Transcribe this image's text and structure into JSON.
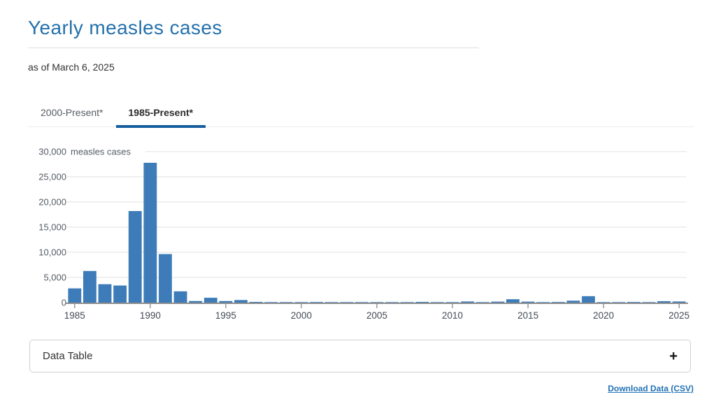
{
  "header": {
    "title": "Yearly measles cases",
    "as_of": "as of March 6, 2025"
  },
  "tabs": {
    "items": [
      {
        "label": "2000-Present*",
        "active": false
      },
      {
        "label": "1985-Present*",
        "active": true
      }
    ]
  },
  "chart_data": {
    "type": "bar",
    "title": "Yearly measles cases",
    "ylabel": "measles cases",
    "xlabel": "",
    "ylim": [
      0,
      30000
    ],
    "grid": true,
    "bar_color": "#3d7cb8",
    "yticks": [
      0,
      5000,
      10000,
      15000,
      20000,
      25000,
      30000
    ],
    "xticks": [
      1985,
      1990,
      1995,
      2000,
      2005,
      2010,
      2015,
      2020,
      2025
    ],
    "x": [
      1985,
      1986,
      1987,
      1988,
      1989,
      1990,
      1991,
      1992,
      1993,
      1994,
      1995,
      1996,
      1997,
      1998,
      1999,
      2000,
      2001,
      2002,
      2003,
      2004,
      2005,
      2006,
      2007,
      2008,
      2009,
      2010,
      2011,
      2012,
      2013,
      2014,
      2015,
      2016,
      2017,
      2018,
      2019,
      2020,
      2021,
      2022,
      2023,
      2024,
      2025
    ],
    "values": [
      2822,
      6282,
      3655,
      3396,
      18193,
      27786,
      9643,
      2237,
      312,
      963,
      309,
      508,
      138,
      100,
      100,
      86,
      116,
      44,
      56,
      37,
      66,
      55,
      43,
      140,
      71,
      63,
      220,
      55,
      187,
      667,
      188,
      86,
      120,
      381,
      1274,
      13,
      49,
      121,
      59,
      285,
      222
    ]
  },
  "accordion": {
    "label": "Data Table",
    "expand_icon": "+"
  },
  "download": {
    "label": "Download Data (CSV)"
  },
  "colors": {
    "title_blue": "#2571ad",
    "tab_underline_blue": "#155d9e",
    "bar_blue": "#3d7cb8",
    "link_blue": "#2272b5"
  }
}
